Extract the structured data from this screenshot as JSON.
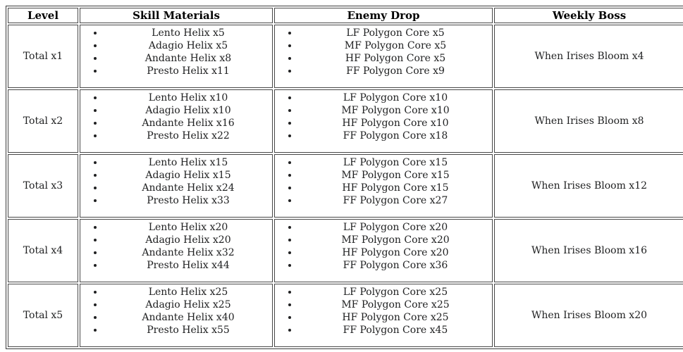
{
  "page": {
    "background": "#ffffff"
  },
  "colors": {
    "table_border": "#3b3b3b",
    "cell_border": "#474747",
    "text": "#202122",
    "header_text": "#000000",
    "background": "#ffffff"
  },
  "table": {
    "headers": [
      "Level",
      "Skill Materials",
      "Enemy Drop",
      "Weekly Boss"
    ],
    "rows": [
      {
        "level": "Total x1",
        "skill_materials": [
          "Lento Helix x5",
          "Adagio Helix x5",
          "Andante Helix x8",
          "Presto Helix x11"
        ],
        "enemy_drop": [
          "LF Polygon Core x5",
          "MF Polygon Core x5",
          "HF Polygon Core x5",
          "FF Polygon Core x9"
        ],
        "weekly_boss": "When Irises Bloom x4"
      },
      {
        "level": "Total x2",
        "skill_materials": [
          "Lento Helix x10",
          "Adagio Helix x10",
          "Andante Helix x16",
          "Presto Helix x22"
        ],
        "enemy_drop": [
          "LF Polygon Core x10",
          "MF Polygon Core x10",
          "HF Polygon Core x10",
          "FF Polygon Core x18"
        ],
        "weekly_boss": "When Irises Bloom x8"
      },
      {
        "level": "Total x3",
        "skill_materials": [
          "Lento Helix x15",
          "Adagio Helix x15",
          "Andante Helix x24",
          "Presto Helix x33"
        ],
        "enemy_drop": [
          "LF Polygon Core x15",
          "MF Polygon Core x15",
          "HF Polygon Core x15",
          "FF Polygon Core x27"
        ],
        "weekly_boss": "When Irises Bloom x12"
      },
      {
        "level": "Total x4",
        "skill_materials": [
          "Lento Helix x20",
          "Adagio Helix x20",
          "Andante Helix x32",
          "Presto Helix x44"
        ],
        "enemy_drop": [
          "LF Polygon Core x20",
          "MF Polygon Core x20",
          "HF Polygon Core x20",
          "FF Polygon Core x36"
        ],
        "weekly_boss": "When Irises Bloom x16"
      },
      {
        "level": "Total x5",
        "skill_materials": [
          "Lento Helix x25",
          "Adagio Helix x25",
          "Andante Helix x40",
          "Presto Helix x55"
        ],
        "enemy_drop": [
          "LF Polygon Core x25",
          "MF Polygon Core x25",
          "HF Polygon Core x25",
          "FF Polygon Core x45"
        ],
        "weekly_boss": "When Irises Bloom x20"
      }
    ]
  }
}
